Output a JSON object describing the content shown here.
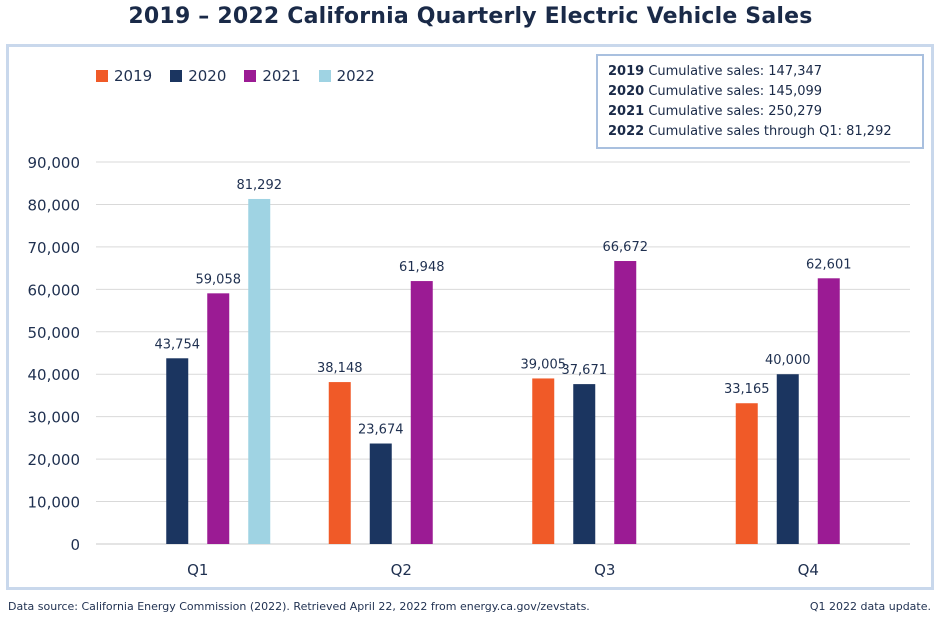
{
  "title": "2019 – 2022 California Quarterly Electric Vehicle Sales",
  "summary": [
    {
      "year": "2019",
      "text": " Cumulative sales: 147,347"
    },
    {
      "year": "2020",
      "text": " Cumulative sales: 145,099"
    },
    {
      "year": "2021",
      "text": " Cumulative sales: 250,279"
    },
    {
      "year": "2022",
      "text": " Cumulative sales through Q1: 81,292"
    }
  ],
  "footer": {
    "source": "Data source: California Energy Commission (2022). Retrieved April 22, 2022 from energy.ca.gov/zevstats.",
    "note": "Q1 2022 data update."
  },
  "chart_data": {
    "type": "bar",
    "categories": [
      "Q1",
      "Q2",
      "Q3",
      "Q4"
    ],
    "ylim": [
      0,
      90000
    ],
    "yticks": [
      0,
      10000,
      20000,
      30000,
      40000,
      50000,
      60000,
      70000,
      80000,
      90000
    ],
    "ytick_labels": [
      "0",
      "10,000",
      "20,000",
      "30,000",
      "40,000",
      "50,000",
      "60,000",
      "70,000",
      "80,000",
      "90,000"
    ],
    "grid": true,
    "legend_position": "top-left",
    "series": [
      {
        "name": "2019",
        "color": "#f05a28",
        "values": [
          null,
          38148,
          39005,
          33165
        ],
        "labels": [
          null,
          "38,148",
          "39,005",
          "33,165"
        ]
      },
      {
        "name": "2020",
        "color": "#1b3560",
        "values": [
          43754,
          23674,
          37671,
          40000
        ],
        "labels": [
          "43,754",
          "23,674",
          "37,671",
          "40,000"
        ]
      },
      {
        "name": "2021",
        "color": "#9b1b94",
        "values": [
          59058,
          61948,
          66672,
          62601
        ],
        "labels": [
          "59,058",
          "61,948",
          "66,672",
          "62,601"
        ]
      },
      {
        "name": "2022",
        "color": "#9fd3e3",
        "values": [
          81292,
          null,
          null,
          null
        ],
        "labels": [
          "81,292",
          null,
          null,
          null
        ]
      }
    ]
  }
}
